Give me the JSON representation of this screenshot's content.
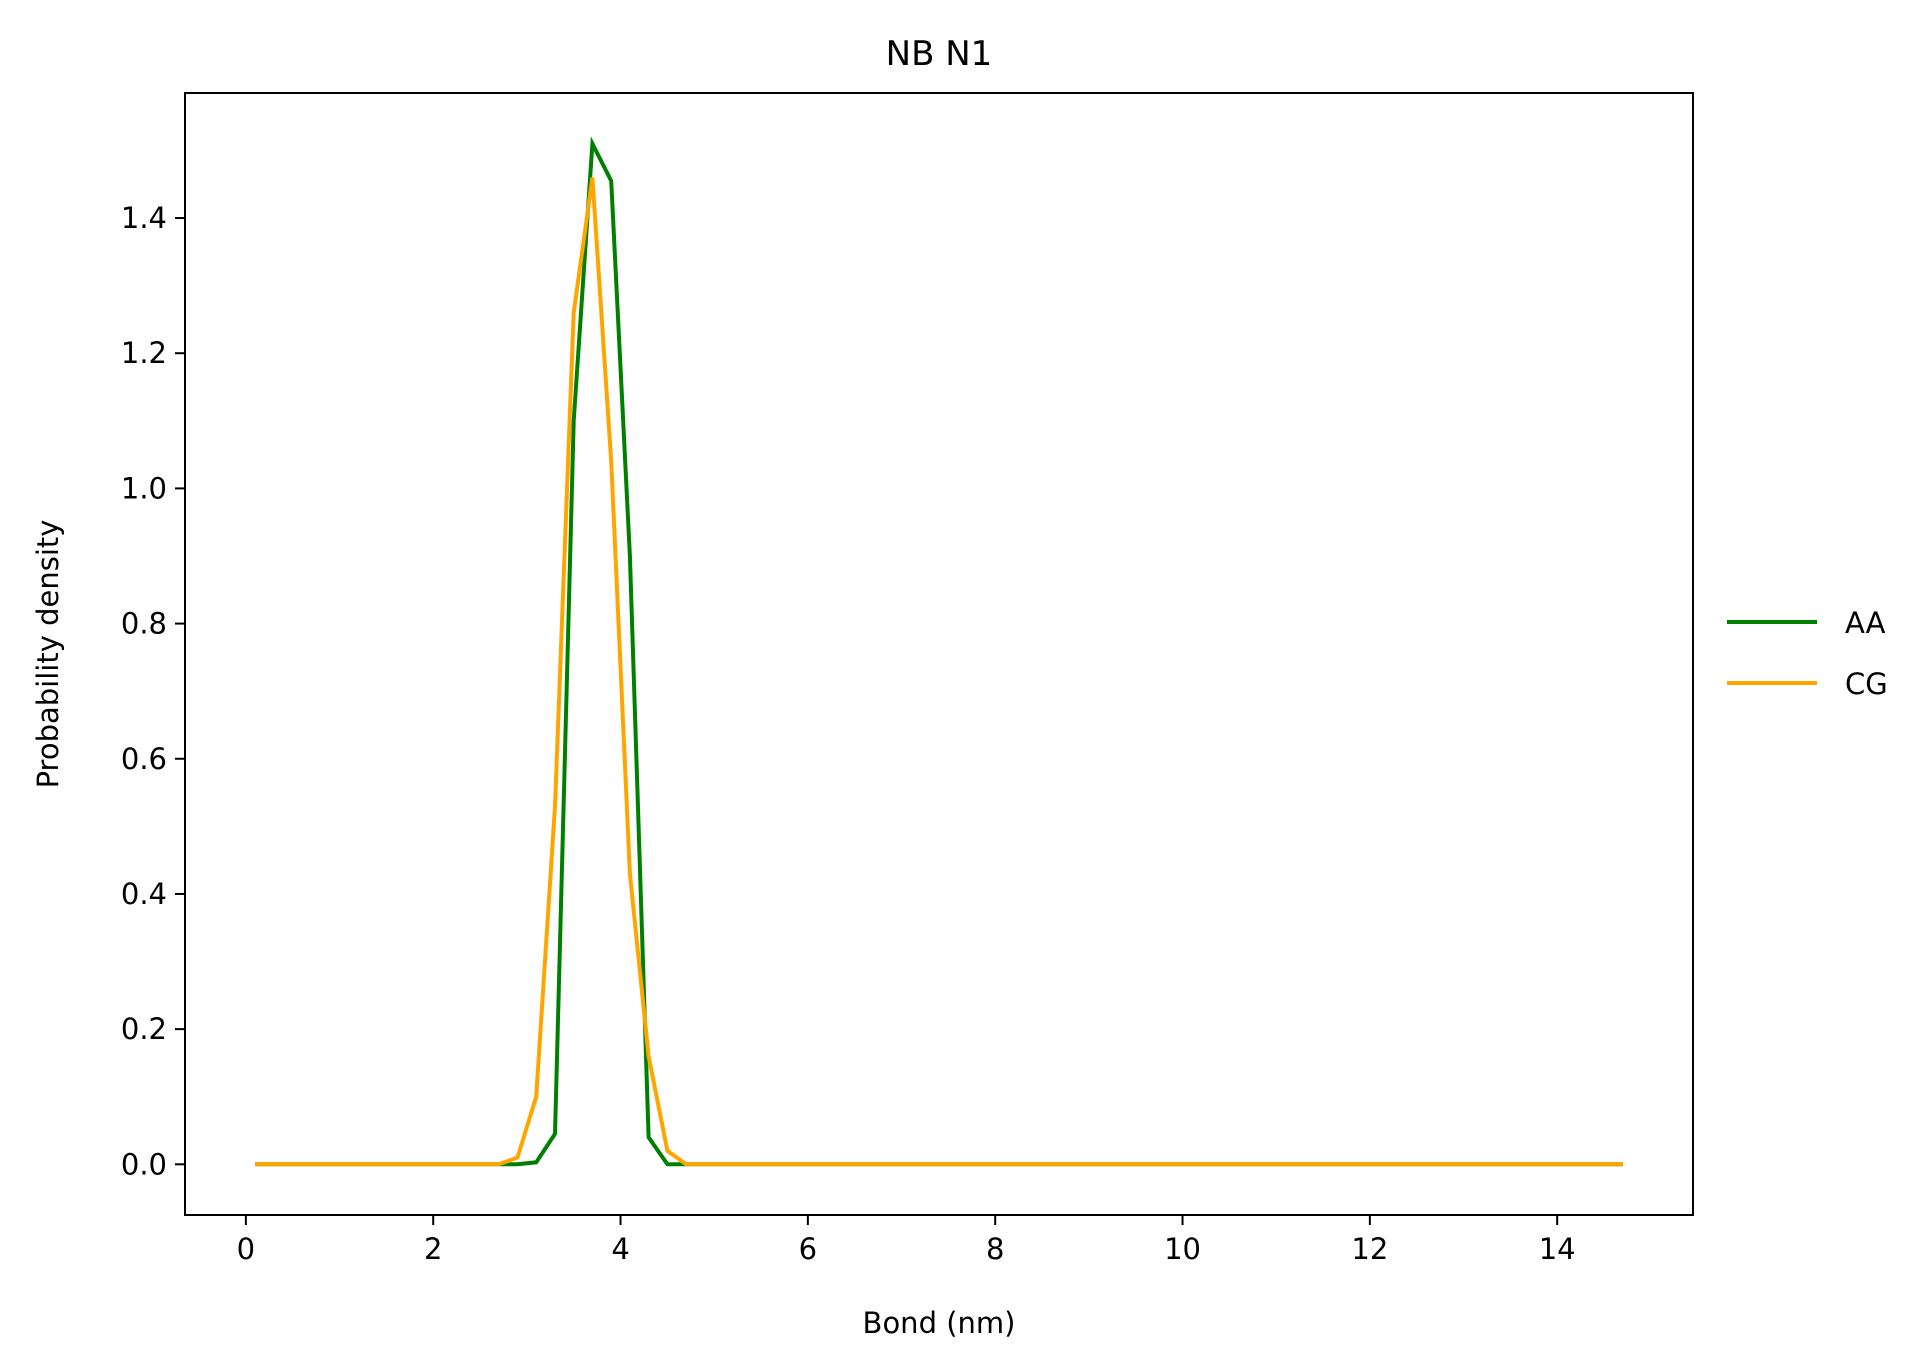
{
  "chart_data": {
    "type": "line",
    "title": "NB N1",
    "xlabel": "Bond (nm)",
    "ylabel": "Probability density",
    "xlim": [
      -0.65,
      15.45
    ],
    "ylim": [
      -0.075,
      1.585
    ],
    "xticks": [
      0,
      2,
      4,
      6,
      8,
      10,
      12,
      14
    ],
    "xtick_labels": [
      "0",
      "2",
      "4",
      "6",
      "8",
      "10",
      "12",
      "14"
    ],
    "yticks": [
      0.0,
      0.2,
      0.4,
      0.6,
      0.8,
      1.0,
      1.2,
      1.4
    ],
    "ytick_labels": [
      "0.0",
      "0.2",
      "0.4",
      "0.6",
      "0.8",
      "1.0",
      "1.2",
      "1.4"
    ],
    "grid": false,
    "legend_position": "outside-right",
    "series": [
      {
        "name": "AA",
        "color": "#008000",
        "x": [
          0.1,
          2.7,
          2.9,
          3.1,
          3.3,
          3.5,
          3.7,
          3.9,
          4.1,
          4.3,
          4.5,
          4.7,
          14.7
        ],
        "y": [
          0.0,
          0.0,
          0.0,
          0.003,
          0.045,
          1.1,
          1.51,
          1.455,
          0.9,
          0.04,
          0.0,
          0.0,
          0.0
        ]
      },
      {
        "name": "CG",
        "color": "#FFA500",
        "x": [
          0.1,
          2.7,
          2.9,
          3.1,
          3.3,
          3.5,
          3.7,
          3.9,
          4.1,
          4.3,
          4.5,
          4.7,
          14.7
        ],
        "y": [
          0.0,
          0.0,
          0.01,
          0.1,
          0.53,
          1.26,
          1.46,
          1.04,
          0.43,
          0.16,
          0.02,
          0.0,
          0.0
        ]
      }
    ]
  }
}
